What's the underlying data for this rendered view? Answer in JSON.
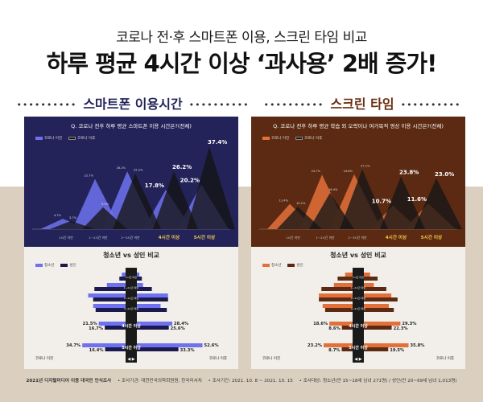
{
  "header": {
    "subtitle": "코로나 전·후 스마트폰 이용, 스크린 타임 비교",
    "title": "하루 평균 4시간 이상 ‘과사용’ 2배 증가!"
  },
  "sections": [
    {
      "title": "스마트폰 이용시간",
      "question": "Q. 코로나 전후 하루 평균 스마트폰 이용 시간은?(전체)",
      "legend_before": "코로나 이전",
      "legend_after": "코로나 이후",
      "lower_title": "청소년 vs 성인 비교",
      "legend_youth": "청소년",
      "legend_adult": "성인",
      "axis_left": "코로나 이전",
      "axis_right": "코로나 이후",
      "colors": {
        "bg": "#23235a",
        "before": "#6f72ee",
        "after": "#141414",
        "label": "#f7c948",
        "accent": "#1a1a4e"
      }
    },
    {
      "title": "스크린 타임",
      "question": "Q. 코로나 전후 하루 평균 학습 외 오락이나 여가목적 영상 이용 시간은?(전체)",
      "legend_before": "코로나 이전",
      "legend_after": "코로나 이후",
      "lower_title": "청소년 vs 성인 비교",
      "legend_youth": "청소년",
      "legend_adult": "성인",
      "axis_left": "코로나 이전",
      "axis_right": "코로나 이후",
      "colors": {
        "bg": "#5c2a12",
        "before": "#e2703a",
        "after": "#161616",
        "label": "#f7c948",
        "accent": "#5c2a12"
      }
    }
  ],
  "chart_data": [
    {
      "type": "area",
      "title": "Q. 코로나 전후 하루 평균 스마트폰 이용 시간은?(전체)",
      "categories": [
        "1시간 미만",
        "1~2시간 미만",
        "2~3시간 미만",
        "4시간 이상",
        "5시간 이상"
      ],
      "series": [
        {
          "name": "코로나 이전",
          "values": [
            4.7,
            22.7,
            26.2,
            17.8,
            20.2
          ]
        },
        {
          "name": "코로나 이후",
          "values": [
            3.7,
            9.9,
            25.2,
            26.2,
            37.4
          ]
        }
      ],
      "value_labels_before": [
        "4.7%",
        "22.7%",
        "26.2%",
        "17.8%",
        "20.2%"
      ],
      "value_labels_after": [
        "3.7%",
        "9.9%",
        "25.2%",
        "26.2%",
        "37.4%"
      ]
    },
    {
      "type": "area",
      "title": "Q. 코로나 전후 하루 평균 학습 외 오락이나 여가목적 영상 이용 시간은?(전체)",
      "categories": [
        "1시간 미만",
        "1~2시간 미만",
        "2~3시간 미만",
        "4시간 이상",
        "5시간 이상"
      ],
      "series": [
        {
          "name": "코로나 이전",
          "values": [
            11.4,
            24.7,
            24.8,
            10.7,
            11.6
          ]
        },
        {
          "name": "코로나 이후",
          "values": [
            10.1,
            16.4,
            27.1,
            23.8,
            23.0
          ]
        }
      ],
      "value_labels_before": [
        "11.4%",
        "24.7%",
        "24.8%",
        "10.7%",
        "11.6%"
      ],
      "value_labels_after": [
        "10.1%",
        "16.4%",
        "27.1%",
        "23.8%",
        "23.0%"
      ]
    },
    {
      "type": "bar",
      "title": "청소년 vs 성인 비교",
      "categories": [
        "1시간 미만",
        "1~2시간 미만",
        "2~3시간 미만",
        "3~4시간 미만",
        "4시간 이상",
        "5시간 이상"
      ],
      "series": [
        {
          "name": "청소년 코로나 이전",
          "values": [
            3.0,
            15.0,
            30.0,
            26.0,
            21.5,
            34.7
          ]
        },
        {
          "name": "성인 코로나 이전",
          "values": [
            5.0,
            25.0,
            26.0,
            24.0,
            16.7,
            16.4
          ]
        },
        {
          "name": "청소년 코로나 이후",
          "values": [
            2.0,
            5.0,
            25.0,
            19.0,
            28.4,
            52.6
          ]
        },
        {
          "name": "성인 코로나 이후",
          "values": [
            4.0,
            12.0,
            25.0,
            24.0,
            25.6,
            33.3
          ]
        }
      ],
      "value_labels": {
        "youth_before": [
          "",
          "",
          "",
          "",
          "21.5%",
          "34.7%"
        ],
        "adult_before": [
          "",
          "",
          "",
          "",
          "16.7%",
          "16.4%"
        ],
        "youth_after": [
          "",
          "",
          "",
          "",
          "28.4%",
          "52.6%"
        ],
        "adult_after": [
          "",
          "",
          "",
          "",
          "25.6%",
          "33.3%"
        ]
      }
    },
    {
      "type": "bar",
      "title": "청소년 vs 성인 비교",
      "categories": [
        "1시간 미만",
        "1~2시간 미만",
        "2~3시간 미만",
        "3~4시간 미만",
        "4시간 이상",
        "5시간 이상"
      ],
      "series": [
        {
          "name": "청소년 코로나 이전",
          "values": [
            6.0,
            15.0,
            27.0,
            24.0,
            18.6,
            23.2
          ]
        },
        {
          "name": "성인 코로나 이전",
          "values": [
            12.0,
            25.0,
            27.0,
            22.0,
            8.6,
            8.7
          ]
        },
        {
          "name": "청소년 코로나 이후",
          "values": [
            5.0,
            8.0,
            22.0,
            20.0,
            29.3,
            35.8
          ]
        },
        {
          "name": "성인 코로나 이후",
          "values": [
            11.0,
            18.0,
            27.0,
            24.0,
            22.3,
            19.5
          ]
        }
      ],
      "value_labels": {
        "youth_before": [
          "",
          "",
          "",
          "",
          "18.6%",
          "23.2%"
        ],
        "adult_before": [
          "",
          "",
          "",
          "",
          "8.6%",
          "8.7%"
        ],
        "youth_after": [
          "",
          "",
          "",
          "",
          "29.3%",
          "35.8%"
        ],
        "adult_after": [
          "",
          "",
          "",
          "",
          "22.3%",
          "19.5%"
        ]
      }
    }
  ],
  "footer": {
    "survey": "2021년 디지털미디어 이용 대국민 인식조사",
    "org": "• 조사기관: 대한민국의학회원원, 한국리서치",
    "period": "• 조사기간: 2021. 10. 8 ~ 2021. 10. 15",
    "target": "• 조사대상: 청소년(만 15~18세 남녀 271명) / 성인(만 20~69세 남녀 1,013명)"
  }
}
